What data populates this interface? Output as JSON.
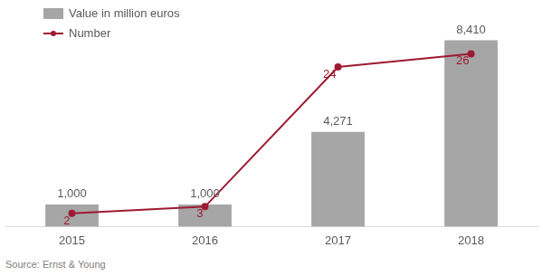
{
  "chart_data": {
    "type": "bar",
    "source": "Source: Ernst & Young",
    "categories": [
      "2015",
      "2016",
      "2017",
      "2018"
    ],
    "series": [
      {
        "name": "Value in million euros",
        "type": "bar",
        "color": "#a6a6a6",
        "values": [
          1000,
          1000,
          4271,
          8410
        ],
        "value_labels": [
          "1,000",
          "1,000",
          "4,271",
          "8,410"
        ]
      },
      {
        "name": "Number",
        "type": "line",
        "color": "#9e1b32",
        "marker": "circle",
        "axis": "y2",
        "values": [
          2,
          3,
          24,
          26
        ]
      }
    ],
    "ylim": [
      0,
      9000
    ],
    "y2lim": [
      0,
      30
    ],
    "grid": false,
    "legend": "top-left",
    "data_labels": true,
    "tick_labels": "x"
  }
}
